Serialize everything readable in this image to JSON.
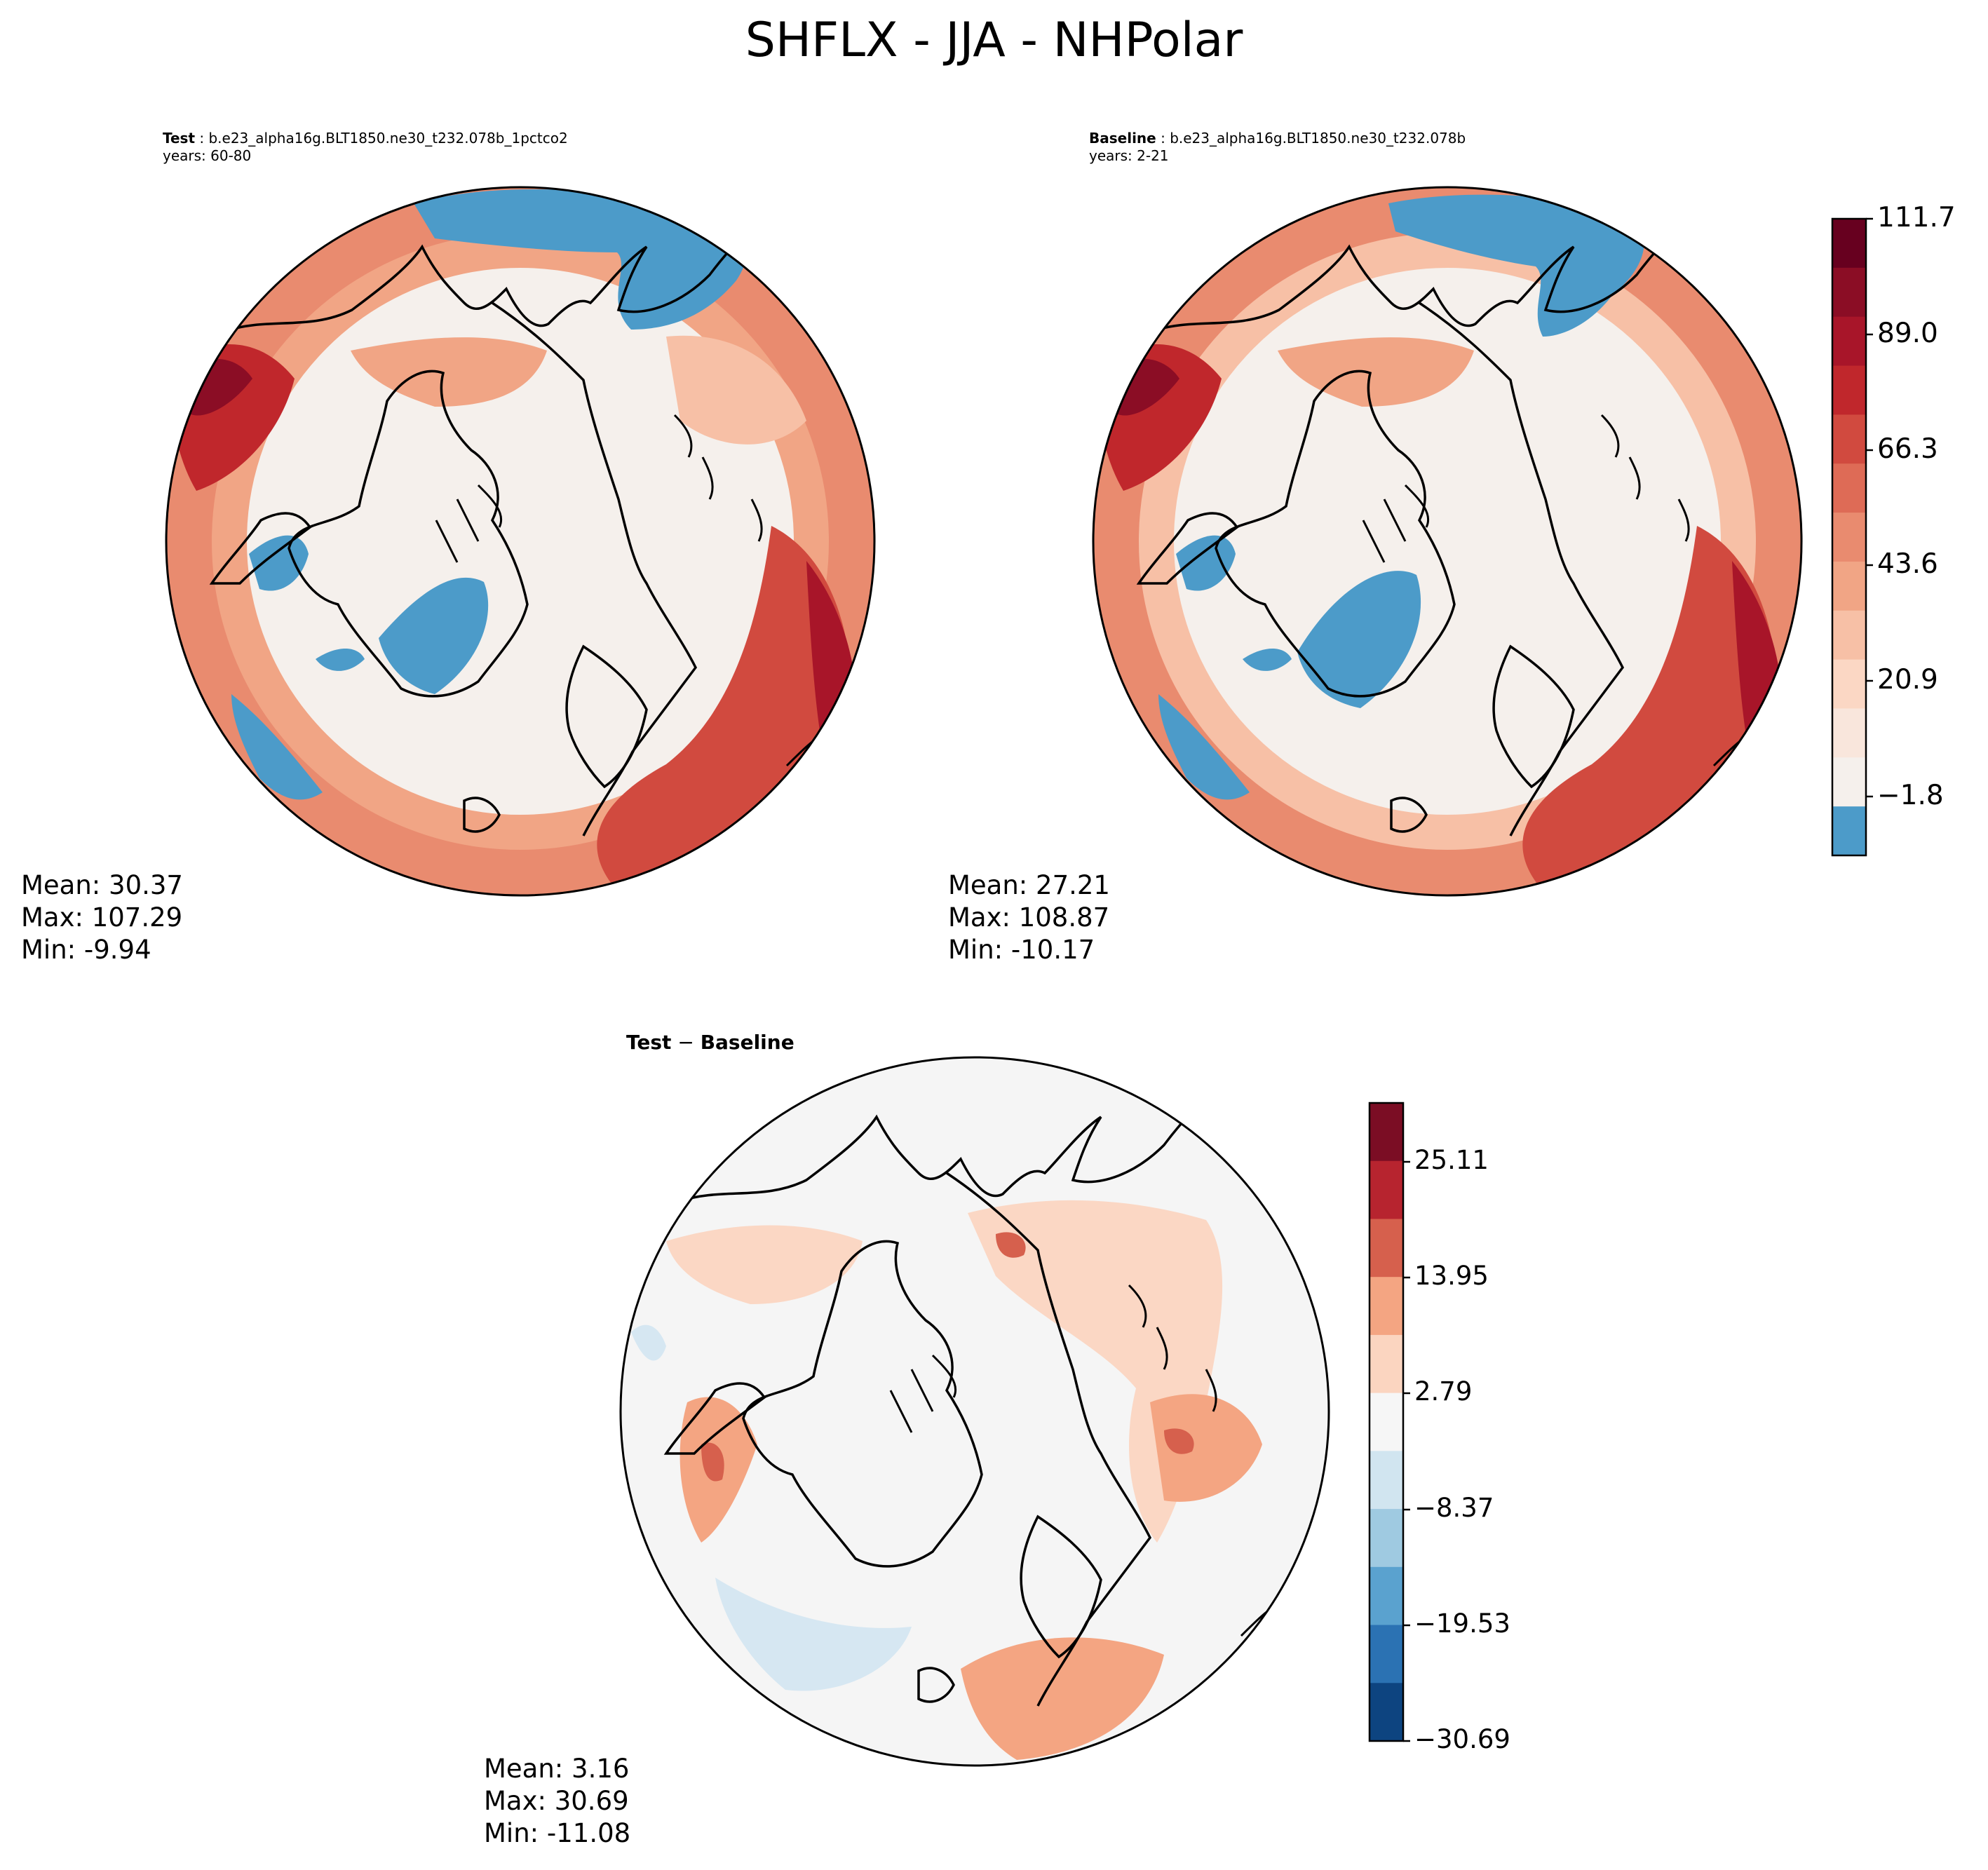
{
  "figure": {
    "title": "SHFLX - JJA - NHPolar"
  },
  "panels": {
    "test": {
      "label_bold": "Test",
      "label_rest": " : b.e23_alpha16g.BLT1850.ne30_t232.078b_1pctco2",
      "years": "years: 60-80",
      "mean": "Mean: 30.37",
      "max": "Max: 107.29",
      "min": "Min: -9.94"
    },
    "baseline": {
      "label_bold": "Baseline",
      "label_rest": " : b.e23_alpha16g.BLT1850.ne30_t232.078b",
      "years": "years: 2-21",
      "mean": "Mean: 27.21",
      "max": "Max: 108.87",
      "min": "Min: -10.17"
    },
    "difference": {
      "title_test": "Test",
      "title_minus": " − ",
      "title_base": "Baseline",
      "mean": "Mean:  3.16",
      "max": "Max: 30.69",
      "min": "Min: -11.08"
    }
  },
  "colorbars": {
    "main": {
      "tick_labels": [
        "111.7",
        "89.0",
        "66.3",
        "43.6",
        "20.9",
        "−1.8"
      ],
      "colors": [
        "#67001f",
        "#8b0d25",
        "#a81529",
        "#c0272c",
        "#d14a3f",
        "#de6b56",
        "#e98b6f",
        "#f1a585",
        "#f7c0a6",
        "#fbd7c4",
        "#f9e6dc",
        "#f5f0ec",
        "#4c9bc9"
      ]
    },
    "diff": {
      "tick_labels": [
        "25.11",
        "13.95",
        "2.79",
        "−8.37",
        "−19.53",
        "−30.69"
      ],
      "colors": [
        "#7b0d24",
        "#b7242f",
        "#d6604d",
        "#f4a582",
        "#fbd5c0",
        "#f6f6f6",
        "#d1e5f0",
        "#9fcae1",
        "#5aa2cf",
        "#2b72b3",
        "#0d4480"
      ]
    }
  },
  "map_colors": {
    "ocean_ice": "#f5f0ec",
    "negative": "#4c9bc9",
    "low": "#f8dccd",
    "mid": "#f1a585",
    "high": "#e07a60",
    "very_high": "#c0272c",
    "extreme": "#8b0d25",
    "diff_neutral": "#f5f5f5",
    "diff_low_pos": "#fbd7c4",
    "diff_mid_pos": "#f4a582",
    "diff_high_pos": "#d6604d",
    "diff_low_neg": "#d6e7f2"
  }
}
